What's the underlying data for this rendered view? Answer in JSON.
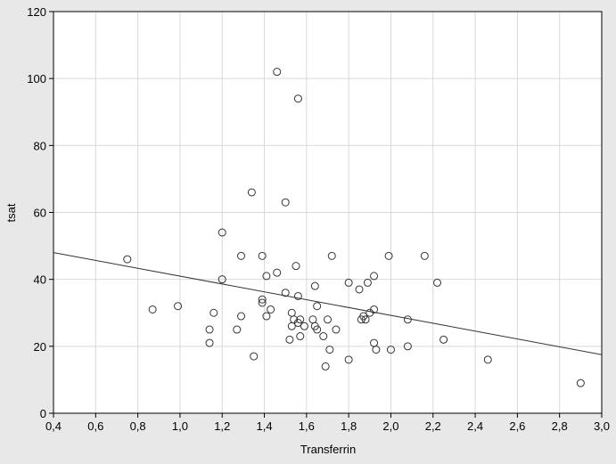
{
  "chart_data": {
    "type": "scatter",
    "title": "",
    "xlabel": "Transferrin",
    "ylabel": "tsat",
    "xlim": [
      0.4,
      3.0
    ],
    "ylim": [
      0,
      120
    ],
    "grid": true,
    "x_ticks": [
      "0,4",
      "0,6",
      "0,8",
      "1,0",
      "1,2",
      "1,4",
      "1,6",
      "1,8",
      "2,0",
      "2,2",
      "2,4",
      "2,6",
      "2,8",
      "3,0"
    ],
    "y_ticks": [
      "0",
      "20",
      "40",
      "60",
      "80",
      "100",
      "120"
    ],
    "colors": {
      "plot_bg": "#ffffff",
      "frame_bg": "#e8e8e8",
      "grid": "#d9d9d9",
      "mark": "#333333"
    },
    "series": [
      {
        "points": [
          {
            "x": 0.75,
            "y": 46
          },
          {
            "x": 0.87,
            "y": 31
          },
          {
            "x": 0.99,
            "y": 32
          },
          {
            "x": 1.14,
            "y": 25
          },
          {
            "x": 1.14,
            "y": 21
          },
          {
            "x": 1.16,
            "y": 30
          },
          {
            "x": 1.2,
            "y": 54
          },
          {
            "x": 1.2,
            "y": 40
          },
          {
            "x": 1.27,
            "y": 25
          },
          {
            "x": 1.29,
            "y": 47
          },
          {
            "x": 1.29,
            "y": 29
          },
          {
            "x": 1.34,
            "y": 66
          },
          {
            "x": 1.35,
            "y": 17
          },
          {
            "x": 1.39,
            "y": 47
          },
          {
            "x": 1.39,
            "y": 34
          },
          {
            "x": 1.39,
            "y": 33
          },
          {
            "x": 1.41,
            "y": 41
          },
          {
            "x": 1.41,
            "y": 29
          },
          {
            "x": 1.43,
            "y": 31
          },
          {
            "x": 1.46,
            "y": 102
          },
          {
            "x": 1.46,
            "y": 42
          },
          {
            "x": 1.5,
            "y": 63
          },
          {
            "x": 1.5,
            "y": 36
          },
          {
            "x": 1.52,
            "y": 22
          },
          {
            "x": 1.53,
            "y": 30
          },
          {
            "x": 1.53,
            "y": 26
          },
          {
            "x": 1.54,
            "y": 28
          },
          {
            "x": 1.55,
            "y": 44
          },
          {
            "x": 1.56,
            "y": 94
          },
          {
            "x": 1.56,
            "y": 35
          },
          {
            "x": 1.56,
            "y": 27
          },
          {
            "x": 1.57,
            "y": 28
          },
          {
            "x": 1.57,
            "y": 23
          },
          {
            "x": 1.59,
            "y": 26
          },
          {
            "x": 1.63,
            "y": 28
          },
          {
            "x": 1.64,
            "y": 38
          },
          {
            "x": 1.64,
            "y": 26
          },
          {
            "x": 1.65,
            "y": 32
          },
          {
            "x": 1.65,
            "y": 25
          },
          {
            "x": 1.68,
            "y": 23
          },
          {
            "x": 1.69,
            "y": 14
          },
          {
            "x": 1.7,
            "y": 28
          },
          {
            "x": 1.71,
            "y": 19
          },
          {
            "x": 1.72,
            "y": 47
          },
          {
            "x": 1.74,
            "y": 25
          },
          {
            "x": 1.8,
            "y": 39
          },
          {
            "x": 1.8,
            "y": 16
          },
          {
            "x": 1.85,
            "y": 37
          },
          {
            "x": 1.86,
            "y": 28
          },
          {
            "x": 1.87,
            "y": 29
          },
          {
            "x": 1.88,
            "y": 28
          },
          {
            "x": 1.89,
            "y": 39
          },
          {
            "x": 1.9,
            "y": 30
          },
          {
            "x": 1.92,
            "y": 41
          },
          {
            "x": 1.92,
            "y": 31
          },
          {
            "x": 1.92,
            "y": 21
          },
          {
            "x": 1.93,
            "y": 19
          },
          {
            "x": 1.99,
            "y": 47
          },
          {
            "x": 2.0,
            "y": 19
          },
          {
            "x": 2.08,
            "y": 28
          },
          {
            "x": 2.08,
            "y": 20
          },
          {
            "x": 2.16,
            "y": 47
          },
          {
            "x": 2.22,
            "y": 39
          },
          {
            "x": 2.25,
            "y": 22
          },
          {
            "x": 2.46,
            "y": 16
          },
          {
            "x": 2.9,
            "y": 9
          }
        ]
      }
    ],
    "fit_line": {
      "x": [
        0.4,
        3.0
      ],
      "y": [
        48,
        17.5
      ]
    }
  }
}
